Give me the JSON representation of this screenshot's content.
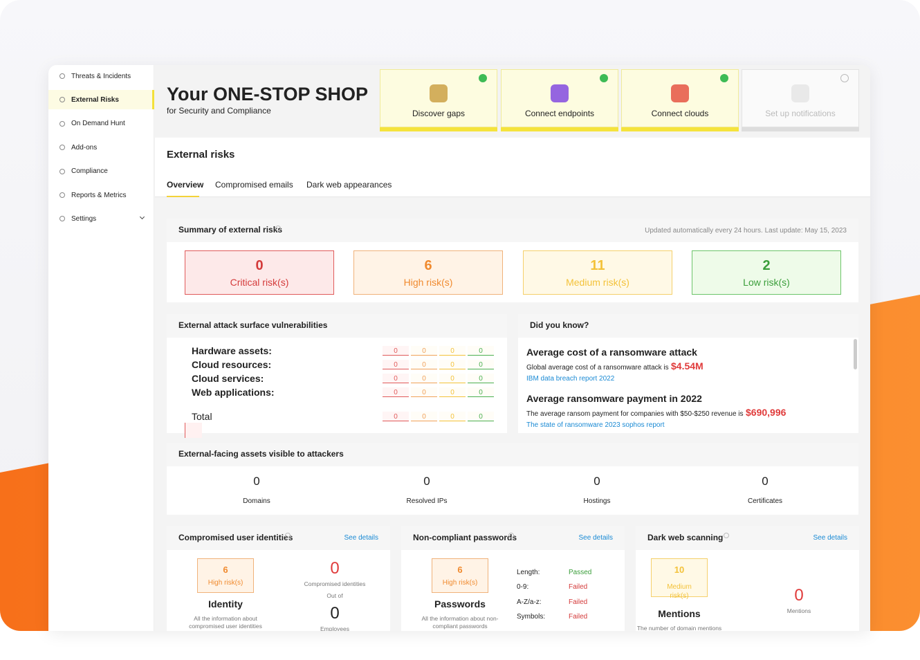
{
  "sidebar": {
    "items": [
      "Threats & Incidents",
      "External Risks",
      "On Demand Hunt",
      "Add-ons",
      "Compliance",
      "Reports & Metrics",
      "Settings"
    ],
    "active": 1
  },
  "header": {
    "title": "Your ONE-STOP SHOP",
    "subtitle": "for Security and Compliance",
    "steps": [
      {
        "label": "Discover gaps",
        "done": true
      },
      {
        "label": "Connect endpoints",
        "done": true
      },
      {
        "label": "Connect clouds",
        "done": true
      },
      {
        "label": "Set up notifications",
        "done": false
      }
    ]
  },
  "page": {
    "title": "External risks",
    "tabs": [
      "Overview",
      "Compromised emails",
      "Dark web appearances"
    ],
    "active_tab": 0
  },
  "summary": {
    "title": "Summary of external risks",
    "updated": "Updated automatically every 24 hours. Last update: May 15, 2023",
    "risks": [
      {
        "count": 0,
        "label": "Critical risk(s)"
      },
      {
        "count": 6,
        "label": "High risk(s)"
      },
      {
        "count": 11,
        "label": "Medium risk(s)"
      },
      {
        "count": 2,
        "label": "Low risk(s)"
      }
    ]
  },
  "vulnerabilities": {
    "title": "External attack surface vulnerabilities",
    "rows": [
      {
        "label": "Hardware assets:",
        "values": [
          0,
          0,
          0,
          0
        ]
      },
      {
        "label": "Cloud resources:",
        "values": [
          0,
          0,
          0,
          0
        ]
      },
      {
        "label": "Cloud services:",
        "values": [
          0,
          0,
          0,
          0
        ]
      },
      {
        "label": "Web applications:",
        "values": [
          0,
          0,
          0,
          0
        ]
      },
      {
        "label": "Total",
        "values": [
          0,
          0,
          0,
          0
        ]
      }
    ]
  },
  "did_you_know": {
    "title": "Did you know?",
    "facts": [
      {
        "heading": "Average cost of a ransomware attack",
        "text": "Global average cost of a ransomware attack is",
        "value": "$4.54M",
        "link": "IBM data breach report 2022"
      },
      {
        "heading": "Average ransomware payment in 2022",
        "text": "The average ransom payment for companies with $50-$250 revenue is",
        "value": "$690,996",
        "link": "The state of ransomware 2023 sophos report"
      }
    ]
  },
  "assets": {
    "title": "External-facing assets visible to attackers",
    "items": [
      {
        "count": 0,
        "label": "Domains"
      },
      {
        "count": 0,
        "label": "Resolved IPs"
      },
      {
        "count": 0,
        "label": "Hostings"
      },
      {
        "count": 0,
        "label": "Certificates"
      }
    ]
  },
  "cards": [
    {
      "title": "Compromised user identities",
      "link": "See details",
      "badge": {
        "count": 6,
        "label": "High risk(s)"
      },
      "name": "Identity",
      "description": "All the information about compromised user identities",
      "stats": {
        "count": 0,
        "label": "Compromised identities",
        "out_of": "Out of",
        "total": 0,
        "total_label": "Employees"
      }
    },
    {
      "title": "Non-compliant passwords",
      "link": "See details",
      "badge": {
        "count": 6,
        "label": "High risk(s)"
      },
      "name": "Passwords",
      "description": "All the information about non-compliant passwords",
      "checks": [
        {
          "label": "Length:",
          "status": "Passed"
        },
        {
          "label": "0-9:",
          "status": "Failed"
        },
        {
          "label": "A-Z/a-z:",
          "status": "Failed"
        },
        {
          "label": "Symbols:",
          "status": "Failed"
        }
      ]
    },
    {
      "title": "Dark web scanning",
      "link": "See details",
      "badge": {
        "count": 10,
        "label": "Medium risk(s)"
      },
      "name": "Mentions",
      "description": "The number of domain mentions",
      "stats": {
        "count": 0,
        "label": "Mentions"
      }
    }
  ]
}
